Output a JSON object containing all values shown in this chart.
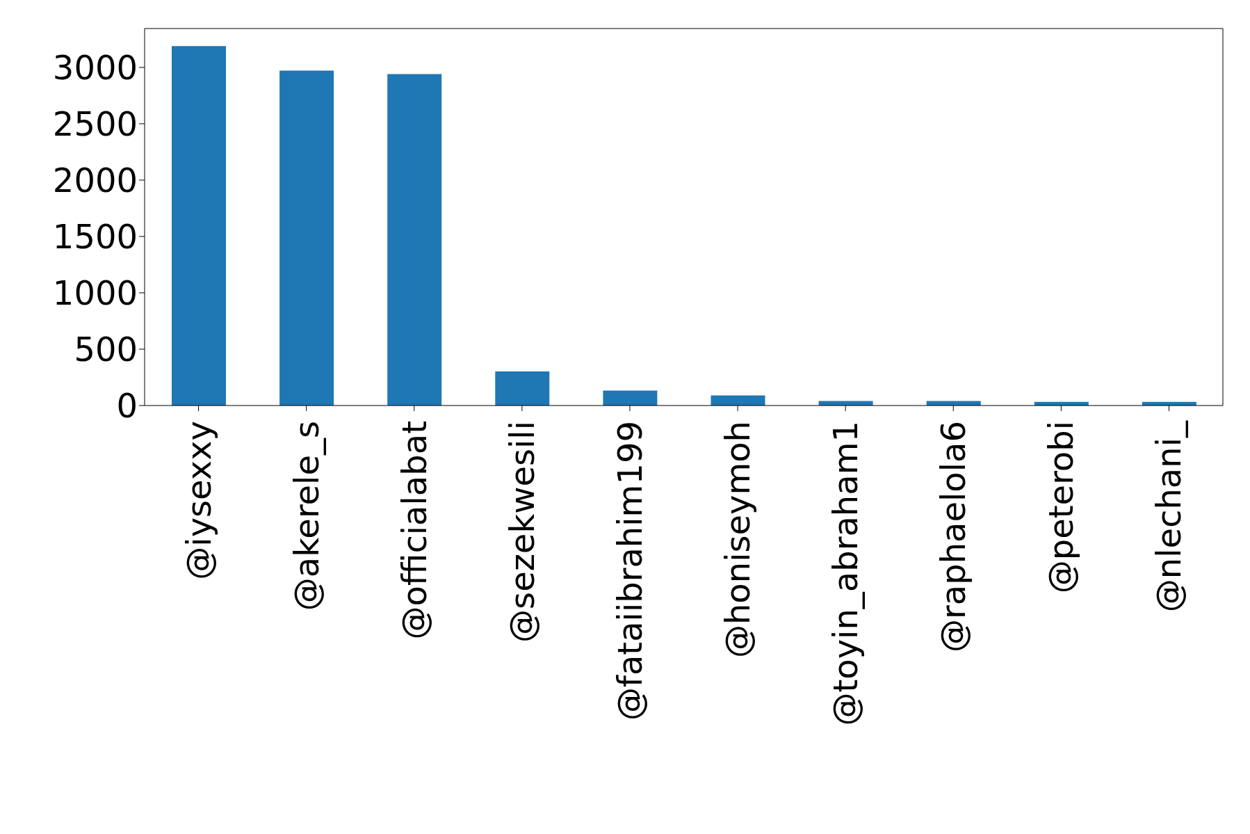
{
  "chart_data": {
    "type": "bar",
    "categories": [
      "@iysexxy",
      "@akerele_s",
      "@officialabat",
      "@sezekwesili",
      "@fataiibrahim199",
      "@honiseymoh",
      "@toyin_abraham1",
      "@raphaelola6",
      "@peterobi",
      "@nlechani_"
    ],
    "values": [
      3189,
      2971,
      2940,
      302,
      133,
      89,
      40,
      40,
      33,
      33
    ],
    "color": "#1f77b4",
    "ylim": [
      0,
      3345
    ],
    "yticks": [
      0,
      500,
      1000,
      1500,
      2000,
      2500,
      3000
    ],
    "grid": false,
    "legend": false
  }
}
